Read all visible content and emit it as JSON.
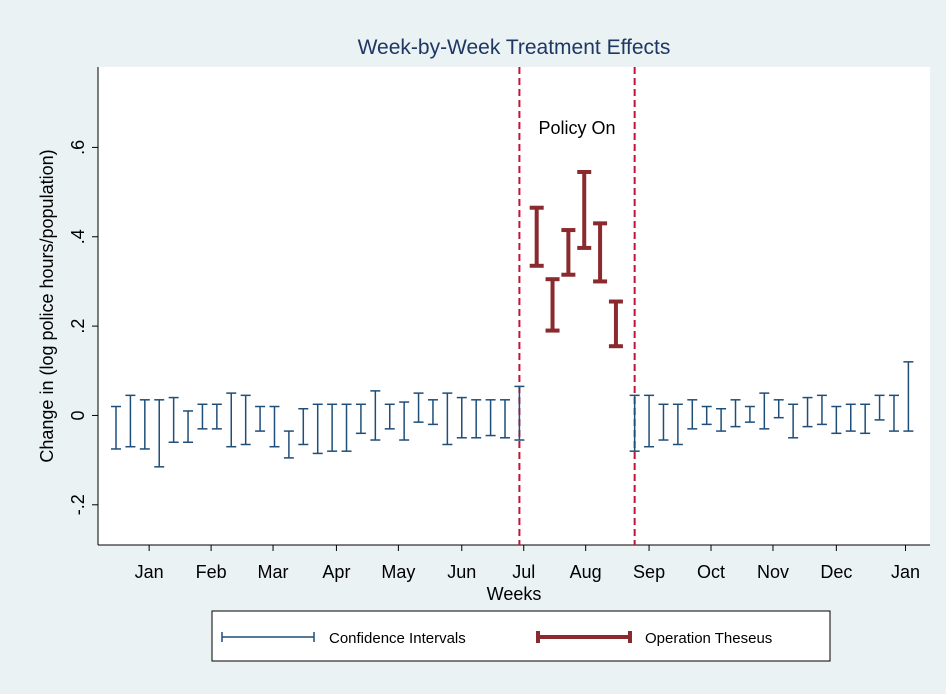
{
  "chart_data": {
    "type": "errorbar",
    "title": "Week-by-Week Treatment Effects",
    "xlabel": "Weeks",
    "ylabel": "Change in (log police hours/population)",
    "annotation": "Policy On",
    "vlines": [
      29,
      37
    ],
    "vline_color": "#c0143c",
    "xlim": [
      -0.25,
      57.5
    ],
    "xticks": [
      {
        "value": 3.3,
        "label": "Jan"
      },
      {
        "value": 7.6,
        "label": "Feb"
      },
      {
        "value": 11.9,
        "label": "Mar"
      },
      {
        "value": 16.3,
        "label": "Apr"
      },
      {
        "value": 20.6,
        "label": "May"
      },
      {
        "value": 25,
        "label": "Jun"
      },
      {
        "value": 29.3,
        "label": "Jul"
      },
      {
        "value": 33.6,
        "label": "Aug"
      },
      {
        "value": 38,
        "label": "Sep"
      },
      {
        "value": 42.3,
        "label": "Oct"
      },
      {
        "value": 46.6,
        "label": "Nov"
      },
      {
        "value": 51,
        "label": "Dec"
      },
      {
        "value": 55.8,
        "label": "Jan"
      }
    ],
    "ylim": [
      -0.29,
      0.78
    ],
    "yticks": [
      {
        "value": -0.2,
        "label": "-.2"
      },
      0,
      {
        "value": 0.2,
        "label": ".2"
      },
      {
        "value": 0.4,
        "label": ".4"
      },
      {
        "value": 0.6,
        "label": ".6"
      }
    ],
    "series": [
      {
        "name": "Confidence Intervals",
        "color": "#1f4e79",
        "width": 1.5,
        "x": [
          1,
          2,
          3,
          4,
          5,
          6,
          7,
          8,
          9,
          10,
          11,
          12,
          13,
          14,
          15,
          16,
          17,
          18,
          19,
          20,
          21,
          22,
          23,
          24,
          25,
          26,
          27,
          28,
          29,
          37,
          38,
          39,
          40,
          41,
          42,
          43,
          44,
          45,
          46,
          47,
          48,
          49,
          50,
          51,
          52,
          53,
          54,
          55,
          56
        ],
        "low": [
          -0.075,
          -0.07,
          -0.075,
          -0.115,
          -0.06,
          -0.06,
          -0.03,
          -0.03,
          -0.07,
          -0.065,
          -0.035,
          -0.07,
          -0.095,
          -0.065,
          -0.085,
          -0.08,
          -0.08,
          -0.04,
          -0.055,
          -0.03,
          -0.055,
          -0.015,
          -0.02,
          -0.065,
          -0.05,
          -0.05,
          -0.045,
          -0.05,
          -0.055,
          -0.08,
          -0.07,
          -0.055,
          -0.065,
          -0.03,
          -0.02,
          -0.035,
          -0.025,
          -0.015,
          -0.03,
          -0.005,
          -0.05,
          -0.025,
          -0.02,
          -0.04,
          -0.035,
          -0.04,
          -0.01,
          -0.035,
          -0.035
        ],
        "high": [
          0.02,
          0.045,
          0.035,
          0.035,
          0.04,
          0.01,
          0.025,
          0.025,
          0.05,
          0.045,
          0.02,
          0.02,
          -0.035,
          0.015,
          0.025,
          0.025,
          0.025,
          0.025,
          0.055,
          0.025,
          0.03,
          0.05,
          0.035,
          0.05,
          0.04,
          0.035,
          0.035,
          0.035,
          0.065,
          0.045,
          0.045,
          0.025,
          0.025,
          0.035,
          0.02,
          0.015,
          0.035,
          0.02,
          0.05,
          0.035,
          0.025,
          0.04,
          0.045,
          0.02,
          0.025,
          0.025,
          0.045,
          0.045,
          0.12
        ]
      },
      {
        "name": "Operation Theseus",
        "color": "#8b2a2e",
        "width": 4,
        "x": [
          30.2,
          31.3,
          32.4,
          33.5,
          34.6,
          35.7
        ],
        "low": [
          0.335,
          0.19,
          0.315,
          0.375,
          0.3,
          0.155
        ],
        "high": [
          0.465,
          0.305,
          0.415,
          0.545,
          0.43,
          0.255
        ]
      }
    ]
  }
}
